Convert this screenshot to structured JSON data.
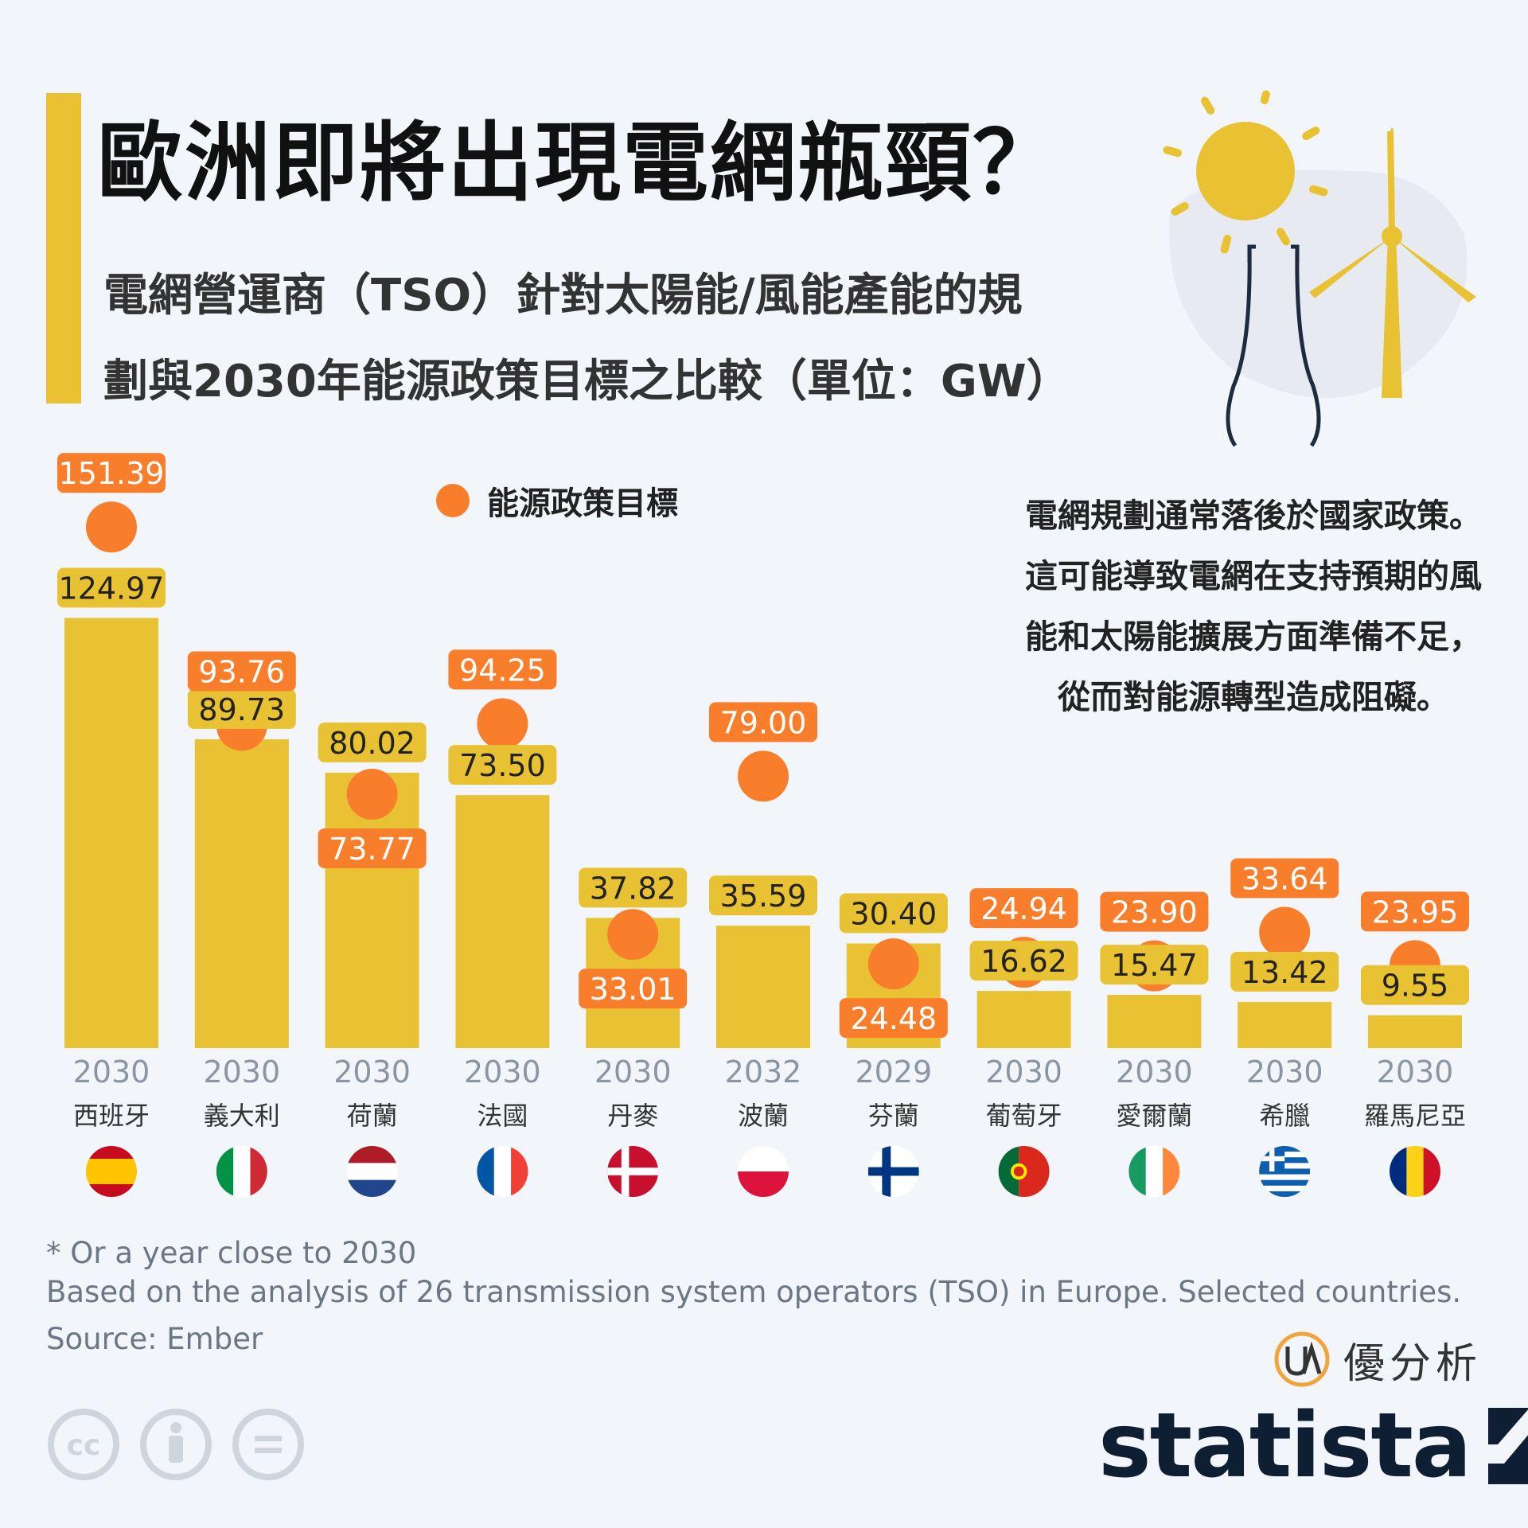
{
  "header": {
    "title": "歐洲即將出現電網瓶頸？",
    "subtitle_line1": "電網營運商（TSO）針對太陽能/風能產能的規",
    "subtitle_line2": "劃與2030年能源政策目標之比較（單位：GW）"
  },
  "legend": {
    "label": "能源政策目標",
    "color": "#f97e2b"
  },
  "note": {
    "lines": [
      "電網規劃通常落後於國家政策。",
      "這可能導致電網在支持預期的風",
      "能和太陽能擴展方面準備不足，",
      "從而對能源轉型造成阻礙。"
    ]
  },
  "chart_data": {
    "type": "bar",
    "categories": [
      "西班牙",
      "義大利",
      "荷蘭",
      "法國",
      "丹麥",
      "波蘭",
      "芬蘭",
      "葡萄牙",
      "愛爾蘭",
      "希臘",
      "羅馬尼亞"
    ],
    "years": [
      "2030",
      "2030",
      "2030",
      "2030",
      "2030",
      "2032",
      "2029",
      "2030",
      "2030",
      "2030",
      "2030"
    ],
    "series": [
      {
        "values": [
          124.97,
          89.73,
          80.02,
          73.5,
          37.82,
          35.59,
          30.4,
          16.62,
          15.47,
          13.42,
          9.55
        ],
        "color": "#e9c233"
      },
      {
        "name": "能源政策目標",
        "values": [
          151.39,
          93.76,
          73.77,
          94.25,
          33.01,
          79.0,
          24.48,
          24.94,
          23.9,
          33.64,
          23.95
        ],
        "color": "#f97e2b"
      }
    ],
    "ylim": [
      0,
      160
    ]
  },
  "flags": [
    "spain",
    "italy",
    "netherlands",
    "france",
    "denmark",
    "poland",
    "finland",
    "portugal",
    "ireland",
    "greece",
    "romania"
  ],
  "footer": {
    "note1": "* Or a year close to 2030",
    "note2": "Based on the analysis of 26 transmission system operators (TSO) in Europe. Selected countries.",
    "source": "Source: Ember",
    "ua_brand": "優分析",
    "statista_brand": "statista"
  }
}
